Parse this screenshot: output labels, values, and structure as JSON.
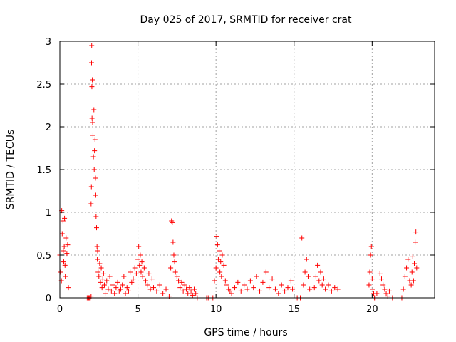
{
  "chart_data": {
    "type": "scatter",
    "title": "Day 025 of 2017, SRMTID for receiver crat",
    "xlabel": "GPS time / hours",
    "ylabel": "SRMTID / TECUs",
    "xlim": [
      0,
      24
    ],
    "ylim": [
      0,
      3
    ],
    "x_ticks": [
      0,
      5,
      10,
      15,
      20
    ],
    "x_tick_labels": [
      "0",
      "5",
      "10",
      "15",
      "20"
    ],
    "y_ticks": [
      0,
      0.5,
      1,
      1.5,
      2,
      2.5,
      3
    ],
    "y_tick_labels": [
      "0",
      "0.5",
      "1",
      "1.5",
      "2",
      "2.5",
      "3"
    ],
    "grid": true,
    "marker": "+",
    "series": [
      {
        "name": "SRMTID",
        "color": "#ff0000",
        "x": [
          0.0,
          0.05,
          0.1,
          0.12,
          0.15,
          0.2,
          0.22,
          0.25,
          0.28,
          0.3,
          0.33,
          0.35,
          0.4,
          0.45,
          0.5,
          0.55,
          1.75,
          1.85,
          1.9,
          1.95,
          2.0,
          2.0,
          2.02,
          2.03,
          2.04,
          2.05,
          2.06,
          2.08,
          2.1,
          2.12,
          2.15,
          2.18,
          2.2,
          2.22,
          2.25,
          2.28,
          2.3,
          2.32,
          2.35,
          2.38,
          2.4,
          2.42,
          2.45,
          2.5,
          2.55,
          2.6,
          2.65,
          2.7,
          2.75,
          2.8,
          2.85,
          2.9,
          3.0,
          3.1,
          3.2,
          3.3,
          3.4,
          3.5,
          3.6,
          3.7,
          3.8,
          3.9,
          4.0,
          4.1,
          4.2,
          4.3,
          4.4,
          4.5,
          4.6,
          4.7,
          4.8,
          4.9,
          5.0,
          5.05,
          5.1,
          5.15,
          5.2,
          5.25,
          5.3,
          5.4,
          5.5,
          5.6,
          5.7,
          5.8,
          5.9,
          6.0,
          6.2,
          6.4,
          6.6,
          6.8,
          7.0,
          7.1,
          7.15,
          7.2,
          7.25,
          7.3,
          7.35,
          7.4,
          7.5,
          7.6,
          7.7,
          7.8,
          7.9,
          8.0,
          8.1,
          8.2,
          8.3,
          8.4,
          8.5,
          8.6,
          8.7,
          8.8,
          9.4,
          9.5,
          9.8,
          9.9,
          10.0,
          10.05,
          10.1,
          10.15,
          10.2,
          10.25,
          10.3,
          10.35,
          10.4,
          10.5,
          10.6,
          10.7,
          10.8,
          10.9,
          11.0,
          11.2,
          11.4,
          11.6,
          11.8,
          12.0,
          12.2,
          12.4,
          12.6,
          12.8,
          13.0,
          13.2,
          13.4,
          13.6,
          13.8,
          14.0,
          14.2,
          14.4,
          14.6,
          14.8,
          14.9,
          15.2,
          15.4,
          15.5,
          15.6,
          15.7,
          15.8,
          15.9,
          16.0,
          16.3,
          16.4,
          16.5,
          16.6,
          16.7,
          16.8,
          16.9,
          17.0,
          17.2,
          17.4,
          17.6,
          17.8,
          19.8,
          19.85,
          19.9,
          19.95,
          20.0,
          20.05,
          20.1,
          20.15,
          20.2,
          20.3,
          20.5,
          20.6,
          20.7,
          20.8,
          20.9,
          21.0,
          21.1,
          21.3,
          21.9,
          22.0,
          22.1,
          22.2,
          22.3,
          22.4,
          22.5,
          22.55,
          22.6,
          22.65,
          22.7,
          22.75,
          22.8,
          22.85
        ],
        "y": [
          0.5,
          0.3,
          0.2,
          1.02,
          0.75,
          0.9,
          0.55,
          0.42,
          0.6,
          0.93,
          0.38,
          0.25,
          0.7,
          0.52,
          0.62,
          0.12,
          0.0,
          0.0,
          0.0,
          0.0,
          0.02,
          1.1,
          1.3,
          2.75,
          2.95,
          2.47,
          2.1,
          2.55,
          2.05,
          1.9,
          1.65,
          2.2,
          1.5,
          1.72,
          1.85,
          1.4,
          1.2,
          0.95,
          0.82,
          0.6,
          0.45,
          0.55,
          0.3,
          0.25,
          0.4,
          0.18,
          0.35,
          0.12,
          0.22,
          0.28,
          0.15,
          0.05,
          0.2,
          0.1,
          0.25,
          0.08,
          0.15,
          0.05,
          0.12,
          0.18,
          0.08,
          0.1,
          0.15,
          0.25,
          0.05,
          0.12,
          0.08,
          0.3,
          0.18,
          0.22,
          0.35,
          0.28,
          0.45,
          0.6,
          0.38,
          0.5,
          0.3,
          0.42,
          0.25,
          0.35,
          0.2,
          0.15,
          0.28,
          0.1,
          0.22,
          0.12,
          0.08,
          0.15,
          0.05,
          0.1,
          0.02,
          0.35,
          0.9,
          0.88,
          0.65,
          0.5,
          0.42,
          0.3,
          0.25,
          0.2,
          0.12,
          0.18,
          0.08,
          0.15,
          0.1,
          0.05,
          0.12,
          0.08,
          0.03,
          0.1,
          0.05,
          0.0,
          0.0,
          0.0,
          0.0,
          0.2,
          0.35,
          0.72,
          0.62,
          0.45,
          0.55,
          0.3,
          0.42,
          0.25,
          0.5,
          0.38,
          0.2,
          0.15,
          0.1,
          0.08,
          0.05,
          0.12,
          0.18,
          0.08,
          0.15,
          0.1,
          0.2,
          0.12,
          0.25,
          0.08,
          0.18,
          0.3,
          0.12,
          0.22,
          0.1,
          0.05,
          0.15,
          0.08,
          0.12,
          0.2,
          0.1,
          0.0,
          0.0,
          0.7,
          0.15,
          0.3,
          0.45,
          0.25,
          0.1,
          0.12,
          0.25,
          0.38,
          0.2,
          0.3,
          0.15,
          0.22,
          0.1,
          0.15,
          0.08,
          0.12,
          0.1,
          0.15,
          0.3,
          0.5,
          0.6,
          0.22,
          0.1,
          0.05,
          0.0,
          0.0,
          0.05,
          0.28,
          0.22,
          0.15,
          0.1,
          0.05,
          0.02,
          0.08,
          0.0,
          0.0,
          0.1,
          0.25,
          0.35,
          0.45,
          0.2,
          0.15,
          0.3,
          0.48,
          0.2,
          0.4,
          0.65,
          0.77,
          0.35
        ]
      }
    ]
  }
}
